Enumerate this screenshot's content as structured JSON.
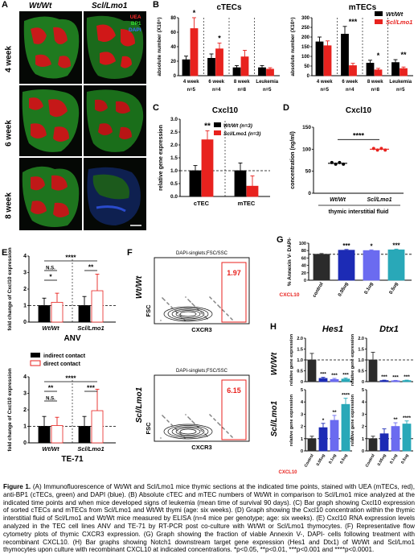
{
  "figure": {
    "panel_labels": [
      "A",
      "B",
      "C",
      "D",
      "E",
      "F",
      "G",
      "H"
    ],
    "A": {
      "columns": [
        "Wt/Wt",
        "Scl/Lmo1"
      ],
      "rows": [
        "4 week",
        "6 week",
        "8 week"
      ],
      "stains": [
        {
          "label": "UEA",
          "color": "#ff2a2a"
        },
        {
          "label": "BP1",
          "color": "#33dd33"
        },
        {
          "label": "DAPI",
          "color": "#3a6bff"
        }
      ]
    },
    "legend_genotype": {
      "wt": "Wt/Wt",
      "scl": "Scl/Lmo1",
      "wt_color": "#000000",
      "scl_color": "#e8221e"
    },
    "B": {
      "ylabel": "absolute number (X10⁵)",
      "cTEC": {
        "title": "cTECs",
        "yticks": [
          "0",
          "20",
          "40",
          "60",
          "80"
        ]
      },
      "mTEC": {
        "title": "mTECs",
        "yticks": [
          "0",
          "50",
          "100",
          "150",
          "200",
          "250",
          "300"
        ]
      },
      "groups": [
        "4 week",
        "6 week",
        "8 week",
        "Leukemia"
      ],
      "ns": [
        "n=5",
        "n=4",
        "n=8",
        "n=5"
      ]
    },
    "C": {
      "title": "Cxcl10",
      "ylabel": "relative gene expression",
      "yticks": [
        "0.0",
        "0.5",
        "1.0",
        "1.5",
        "2.0",
        "2.5",
        "3.0"
      ],
      "categories": [
        "cTEC",
        "mTEC"
      ],
      "legend": [
        "Wt/Wt (n=3)",
        "Scl/Lmo1 (n=3)"
      ],
      "sig": "**"
    },
    "D": {
      "title": "Cxcl10",
      "ylabel": "concentration (ng/ml)",
      "yticks": [
        "0",
        "50",
        "100",
        "150"
      ],
      "categories": [
        "Wt/Wt",
        "Scl/Lmo1"
      ],
      "xlabel": "thymic interstitial fluid",
      "sig": "****"
    },
    "E": {
      "ylabel": "fold change of Cxcl10 expression",
      "yticks": [
        "0",
        "1",
        "2",
        "3",
        "4"
      ],
      "top_title": "ANV",
      "bottom_title": "TE-71",
      "groups": [
        "Wt/Wt",
        "Scl/Lmo1"
      ],
      "legend": [
        "indirect contact",
        "direct contact"
      ],
      "top_sigs": [
        "****",
        "N.S.",
        "*",
        "**"
      ],
      "bottom_sigs": [
        "****",
        "**",
        "N.S.",
        "***"
      ]
    },
    "F": {
      "gate_title": "DAPI-singlets;FSC/SSC",
      "rows": [
        "Wt/Wt",
        "Scl/Lmo1"
      ],
      "values": [
        "1.97",
        "6.15"
      ],
      "xlabel": "CXCR3",
      "ylabel": "FSC"
    },
    "G": {
      "ylabel": "% Annexin V- DAPI-",
      "yticks": [
        "0",
        "20",
        "40",
        "60",
        "80",
        "100"
      ],
      "cxcl10_label": "CXCL10",
      "categories": [
        "control",
        "0.05ug",
        "0.1ug",
        "0.5ug"
      ],
      "sigs": [
        "",
        "***",
        "*",
        "***"
      ]
    },
    "H": {
      "genes": [
        "Hes1",
        "Dtx1"
      ],
      "rows": [
        "Wt/Wt",
        "Scl/Lmo1"
      ],
      "ylabel": "relative gene expression",
      "yticks_top": [
        "0",
        "0.5",
        "1.0",
        "1.5",
        "2.0"
      ],
      "yticks_bottom": [
        "0",
        "1",
        "2",
        "3",
        "4",
        "5"
      ],
      "cxcl10_label": "CXCL10",
      "categories": [
        "Control",
        "0.05ug",
        "0.1ug",
        "0.5ug"
      ],
      "sigs_wt_hes1": [
        "",
        "***",
        "***",
        "***"
      ],
      "sigs_wt_dtx1": [
        "",
        "***",
        "***",
        "***"
      ],
      "sigs_scl_hes1": [
        "",
        "*",
        "**",
        "****"
      ],
      "sigs_scl_dtx1": [
        "",
        "",
        "**",
        "****"
      ]
    },
    "caption": {
      "heading": "Figure 1.",
      "text": "(A) Immunofluorescence of Wt/Wt and Scl/Lmo1 mice thymic sections at the indicated time points, stained with UEA (mTECs, red), anti-BP1 (cTECs, green) and DAPI (blue). (B) Absolute cTEC and mTEC numbers of Wt/Wt in comparison to Scl/Lmo1 mice analyzed at the indicated time points and when mice developed signs of leukemia (mean time of survival 90 days). (C) Bar graph showing Cxcl10 expression of sorted cTECs and mTECs from Scl/Lmo1 and Wt/Wt thymi (age: six weeks). (D) Graph showing the Cxcl10 concentration within the thymic interstitial fluid of Scl/Lmo1 and Wt/Wt mice measured by ELISA (n=4 mice per genotype; age: six weeks). (E) Cxcl10 RNA expression levels analyzed in the TEC cell lines ANV and TE-71 by RT-PCR post co-culture with Wt/Wt or Scl/Lmo1 thymocytes. (F) Representative flow cytometry plots of thymic CXCR3 expression. (G) Graph showing the fraction of viable Annexin V-, DAPI- cells following treatment with recombinant CXCL10. (H) Bar graphs showing Notch1 downstream target gene expression (Hes1 and Dtx1) of Wt/Wt and Scl/Lmo1 thymocytes upon culture with recombinant CXCL10 at indicated concentrations. *p<0.05, **p<0.01, ***p<0.001 and ****p<0.0001."
    }
  },
  "chart_data": [
    {
      "panel": "B-cTECs",
      "type": "bar",
      "title": "cTECs",
      "ylabel": "absolute number (X10⁵)",
      "ylim": [
        0,
        80
      ],
      "categories": [
        "4 week",
        "6 week",
        "8 week",
        "Leukemia"
      ],
      "series": [
        {
          "name": "Wt/Wt",
          "values": [
            22,
            24,
            11,
            11
          ],
          "errors": [
            5,
            6,
            3,
            3
          ]
        },
        {
          "name": "Scl/Lmo1",
          "values": [
            65,
            37,
            26,
            9
          ],
          "errors": [
            15,
            8,
            9,
            2
          ]
        }
      ],
      "sigs": [
        "*",
        "*",
        "",
        ""
      ]
    },
    {
      "panel": "B-mTECs",
      "type": "bar",
      "title": "mTECs",
      "ylabel": "absolute number (X10⁵)",
      "ylim": [
        0,
        300
      ],
      "categories": [
        "4 week",
        "6 week",
        "8 week",
        "Leukemia"
      ],
      "series": [
        {
          "name": "Wt/Wt",
          "values": [
            175,
            215,
            65,
            68
          ],
          "errors": [
            25,
            40,
            15,
            15
          ]
        },
        {
          "name": "Scl/Lmo1",
          "values": [
            155,
            52,
            30,
            37
          ],
          "errors": [
            25,
            12,
            8,
            8
          ]
        }
      ],
      "sigs": [
        "",
        "***",
        "*",
        "**"
      ]
    },
    {
      "panel": "C",
      "type": "bar",
      "title": "Cxcl10",
      "ylabel": "relative gene expression",
      "ylim": [
        0,
        3
      ],
      "categories": [
        "cTEC",
        "mTEC"
      ],
      "series": [
        {
          "name": "Wt/Wt (n=3)",
          "values": [
            1.0,
            1.0
          ],
          "errors": [
            0.2,
            0.3
          ]
        },
        {
          "name": "Scl/Lmo1 (n=3)",
          "values": [
            2.2,
            0.4
          ],
          "errors": [
            0.35,
            0.4
          ]
        }
      ]
    },
    {
      "panel": "D",
      "type": "scatter",
      "title": "Cxcl10",
      "ylabel": "concentration (ng/ml)",
      "ylim": [
        0,
        150
      ],
      "categories": [
        "Wt/Wt",
        "Scl/Lmo1"
      ],
      "means": [
        68,
        100
      ]
    },
    {
      "panel": "E-ANV",
      "type": "bar",
      "title": "ANV",
      "ylabel": "fold change of Cxcl10 expression",
      "ylim": [
        0,
        4
      ],
      "categories": [
        "Wt/Wt",
        "Scl/Lmo1"
      ],
      "series": [
        {
          "name": "indirect contact",
          "values": [
            1.0,
            1.0
          ],
          "errors": [
            0.45,
            0.55
          ]
        },
        {
          "name": "direct contact",
          "values": [
            1.2,
            1.9
          ],
          "errors": [
            0.55,
            1.0
          ]
        }
      ]
    },
    {
      "panel": "E-TE-71",
      "type": "bar",
      "title": "TE-71",
      "ylabel": "fold change of Cxcl10 expression",
      "ylim": [
        0,
        4
      ],
      "categories": [
        "Wt/Wt",
        "Scl/Lmo1"
      ],
      "series": [
        {
          "name": "indirect contact",
          "values": [
            1.0,
            1.0
          ],
          "errors": [
            0.6,
            0.6
          ]
        },
        {
          "name": "direct contact",
          "values": [
            1.05,
            1.95
          ],
          "errors": [
            0.5,
            1.3
          ]
        }
      ]
    },
    {
      "panel": "G",
      "type": "bar",
      "ylabel": "% Annexin V- DAPI-",
      "ylim": [
        0,
        100
      ],
      "categories": [
        "control",
        "0.05ug",
        "0.1ug",
        "0.5ug"
      ],
      "values": [
        70,
        81,
        80,
        82
      ],
      "errors": [
        2,
        2,
        2,
        2
      ]
    },
    {
      "panel": "H-Wt-Hes1",
      "type": "bar",
      "title": "Hes1",
      "ylabel": "relative gene expression",
      "ylim": [
        0,
        2
      ],
      "categories": [
        "Control",
        "0.05ug",
        "0.1ug",
        "0.5ug"
      ],
      "values": [
        1.0,
        0.15,
        0.1,
        0.12
      ],
      "errors": [
        0.3,
        0.05,
        0.05,
        0.05
      ]
    },
    {
      "panel": "H-Wt-Dtx1",
      "type": "bar",
      "title": "Dtx1",
      "ylabel": "relative gene expression",
      "ylim": [
        0,
        2
      ],
      "categories": [
        "Control",
        "0.05ug",
        "0.1ug",
        "0.5ug"
      ],
      "values": [
        1.0,
        0.05,
        0.04,
        0.05
      ],
      "errors": [
        0.35,
        0.02,
        0.02,
        0.02
      ]
    },
    {
      "panel": "H-Scl-Hes1",
      "type": "bar",
      "title": "Hes1",
      "ylabel": "relative gene expression",
      "ylim": [
        0,
        5
      ],
      "categories": [
        "Control",
        "0.05ug",
        "0.1ug",
        "0.5ug"
      ],
      "values": [
        1.0,
        1.9,
        2.5,
        3.8
      ],
      "errors": [
        0.2,
        0.35,
        0.4,
        0.5
      ]
    },
    {
      "panel": "H-Scl-Dtx1",
      "type": "bar",
      "title": "Dtx1",
      "ylabel": "relative gene expression",
      "ylim": [
        0,
        5
      ],
      "categories": [
        "Control",
        "0.05ug",
        "0.1ug",
        "0.5ug"
      ],
      "values": [
        1.0,
        1.4,
        2.0,
        2.2
      ],
      "errors": [
        0.2,
        0.4,
        0.3,
        0.25
      ]
    }
  ]
}
